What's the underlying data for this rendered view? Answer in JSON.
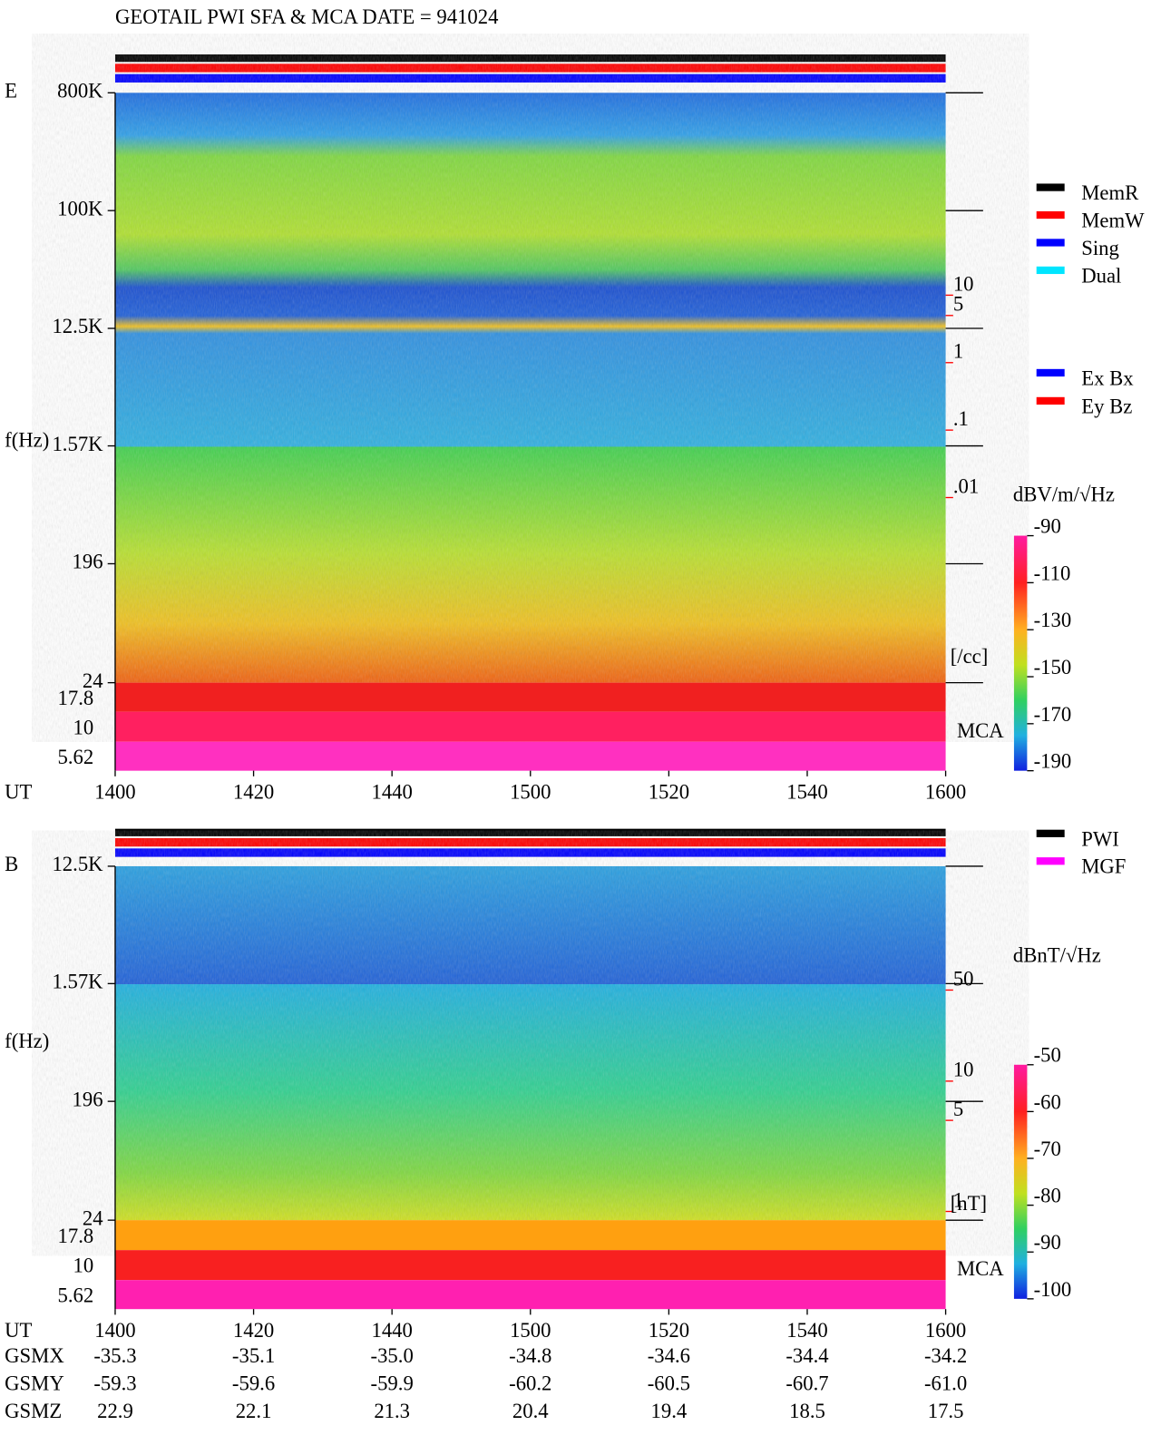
{
  "title": "GEOTAIL  PWI SFA & MCA   DATE = 941024",
  "chart_data": [
    {
      "type": "spectrogram",
      "label": "E",
      "ylabel": "f(Hz)",
      "xlabel": "UT",
      "yscale": "log",
      "ylim": [
        24,
        800000
      ],
      "yticks": [
        {
          "value": 800000,
          "label": "800K"
        },
        {
          "value": 100000,
          "label": "100K"
        },
        {
          "value": 12500,
          "label": "12.5K"
        },
        {
          "value": 1570,
          "label": "1.57K"
        },
        196,
        24
      ],
      "mca_ticks": [
        17.8,
        10,
        5.62
      ],
      "mca_label": "MCA",
      "xticks": [
        "1400",
        "1420",
        "1440",
        "1500",
        "1520",
        "1540",
        "1600"
      ],
      "y2scale": "log",
      "y2lim": [
        1.8e-05,
        10000
      ],
      "y2ticks": [
        10,
        5,
        1,
        {
          "value": 0.1,
          "label": ".1"
        },
        {
          "value": 0.01,
          "label": ".01"
        }
      ],
      "y2label": "[/cc]",
      "y2color": "#ff0000",
      "legend": [
        {
          "name": "MemR",
          "color": "#000000"
        },
        {
          "name": "MemW",
          "color": "#ff0000"
        },
        {
          "name": "Sing",
          "color": "#0000ff"
        },
        {
          "name": "Dual",
          "color": "#00e5ff"
        }
      ],
      "legend2": [
        {
          "name": "Ex Bx",
          "color": "#0000ff"
        },
        {
          "name": "Ey Bz",
          "color": "#ff0000"
        }
      ],
      "colorbar": {
        "label": "dBV/m/√Hz",
        "lim": [
          -190,
          -90
        ],
        "ticks": [
          -90,
          -110,
          -130,
          -150,
          -170,
          -190
        ]
      }
    },
    {
      "type": "spectrogram",
      "label": "B",
      "ylabel": "f(Hz)",
      "xlabel": "UT",
      "yscale": "log",
      "ylim": [
        24,
        12500
      ],
      "yticks": [
        {
          "value": 12500,
          "label": "12.5K"
        },
        {
          "value": 1570,
          "label": "1.57K"
        },
        196,
        24
      ],
      "mca_ticks": [
        17.8,
        10,
        5.62
      ],
      "mca_label": "MCA",
      "xticks": [
        "1400",
        "1420",
        "1440",
        "1500",
        "1520",
        "1540",
        "1600"
      ],
      "y2scale": "log",
      "y2lim": [
        0.857,
        446
      ],
      "y2ticks": [
        50,
        10,
        5,
        1
      ],
      "y2label": "[nT]",
      "y2color": "#ff0000",
      "legend": [
        {
          "name": "PWI",
          "color": "#000000"
        },
        {
          "name": "MGF",
          "color": "#ff00ff"
        }
      ],
      "colorbar": {
        "label": "dBnT/√Hz",
        "lim": [
          -100,
          -50
        ],
        "ticks": [
          -50,
          -60,
          -70,
          -80,
          -90,
          -100
        ]
      }
    }
  ],
  "orbit_table": [
    {
      "label": "GSMX",
      "values": [
        "-35.3",
        "-35.1",
        "-35.0",
        "-34.8",
        "-34.6",
        "-34.4",
        "-34.2"
      ]
    },
    {
      "label": "GSMY",
      "values": [
        "-59.3",
        "-59.6",
        "-59.9",
        "-60.2",
        "-60.5",
        "-60.7",
        "-61.0"
      ]
    },
    {
      "label": "GSMZ",
      "values": [
        "22.9",
        "22.1",
        "21.3",
        "20.4",
        "19.4",
        "18.5",
        "17.5"
      ]
    }
  ]
}
